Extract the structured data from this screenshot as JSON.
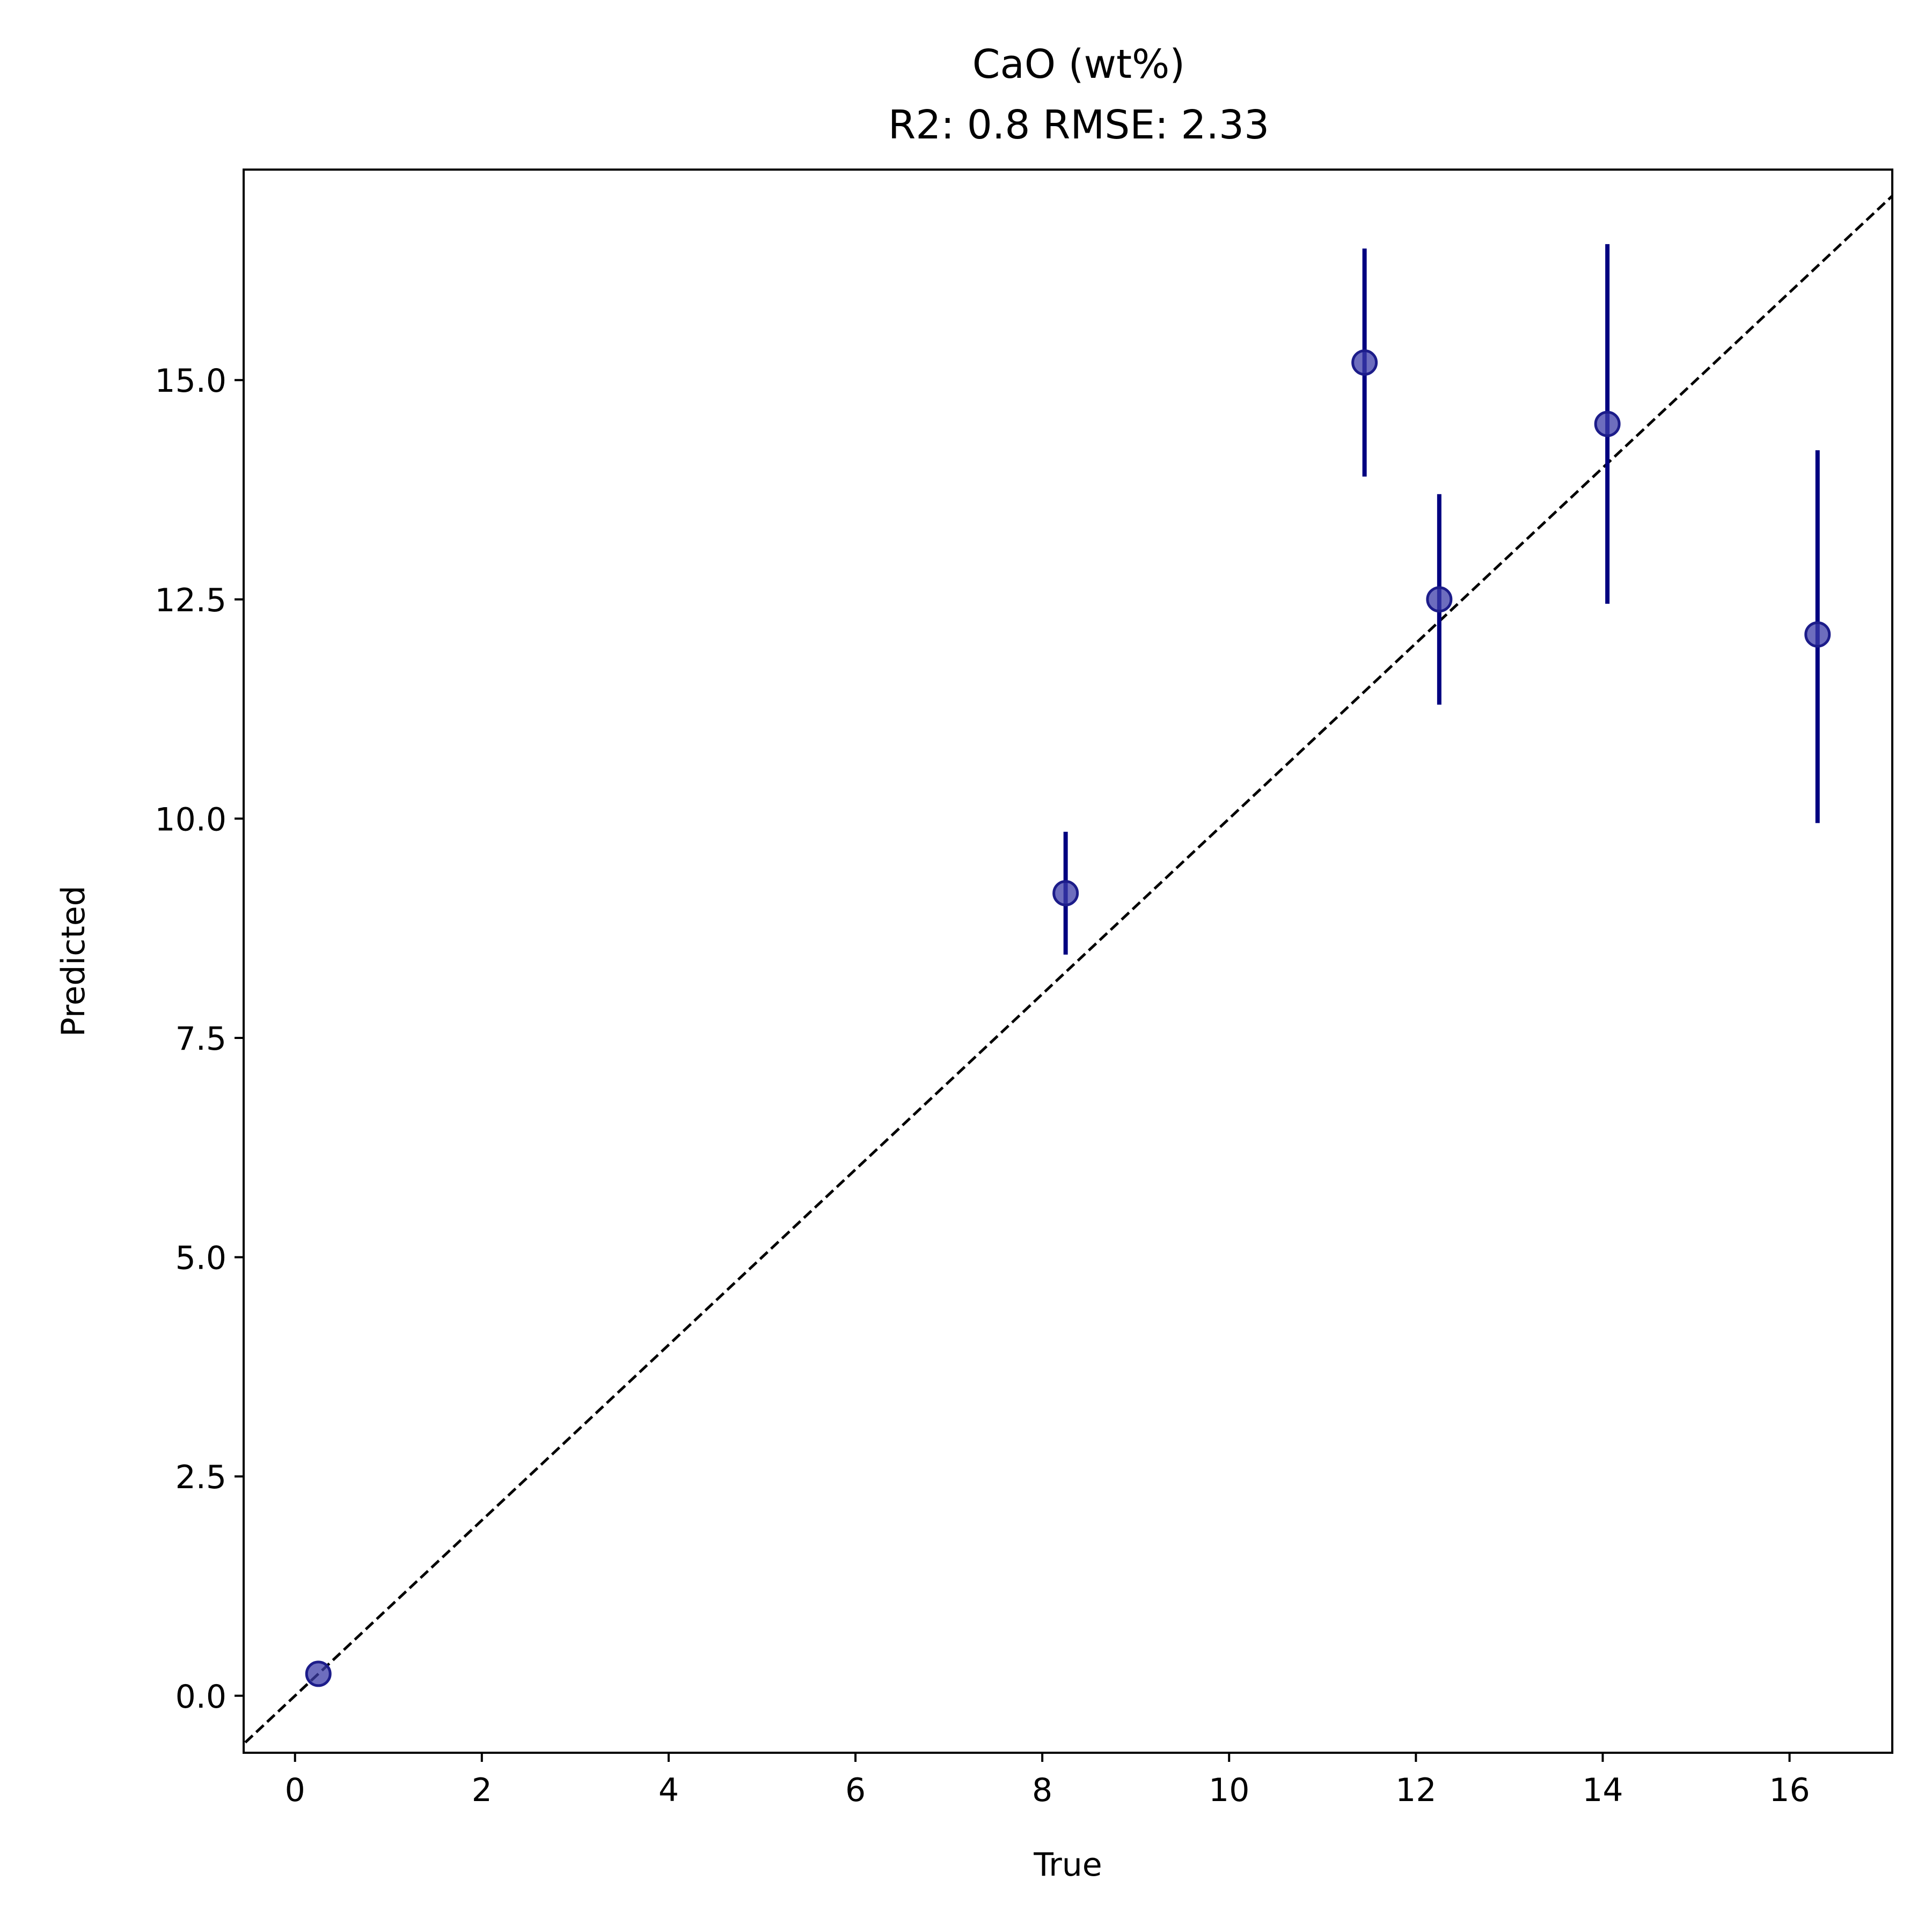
{
  "chart_data": {
    "type": "scatter",
    "title": "CaO (wt%)",
    "subtitle": "R2: 0.8    RMSE: 2.33",
    "xlabel": "True",
    "ylabel": "Predicted",
    "xlim": [
      -0.55,
      17.1
    ],
    "ylim": [
      -0.65,
      17.4
    ],
    "xticks": [
      0,
      2,
      4,
      6,
      8,
      10,
      12,
      14,
      16
    ],
    "xtick_labels": [
      "0",
      "2",
      "4",
      "6",
      "8",
      "10",
      "12",
      "14",
      "16"
    ],
    "yticks": [
      0.0,
      2.5,
      5.0,
      7.5,
      10.0,
      12.5,
      15.0
    ],
    "ytick_labels": [
      "0.0",
      "2.5",
      "5.0",
      "7.5",
      "10.0",
      "12.5",
      "15.0"
    ],
    "grid": false,
    "reference_line": {
      "type": "y=x",
      "style": "dashed",
      "color": "#000000"
    },
    "points": [
      {
        "x": 0.25,
        "y": 0.25,
        "err_low": 0.1,
        "err_high": 0.1
      },
      {
        "x": 8.25,
        "y": 9.15,
        "err_low": 8.45,
        "err_high": 9.85
      },
      {
        "x": 11.45,
        "y": 15.2,
        "err_low": 13.9,
        "err_high": 16.5
      },
      {
        "x": 12.25,
        "y": 12.5,
        "err_low": 11.3,
        "err_high": 13.7
      },
      {
        "x": 14.05,
        "y": 14.5,
        "err_low": 12.45,
        "err_high": 16.55
      },
      {
        "x": 16.3,
        "y": 12.1,
        "err_low": 9.95,
        "err_high": 14.2
      }
    ],
    "colors": {
      "marker": "#3c3ca8",
      "marker_edge": "#1c1c8a",
      "errorbar": "#000080"
    }
  }
}
